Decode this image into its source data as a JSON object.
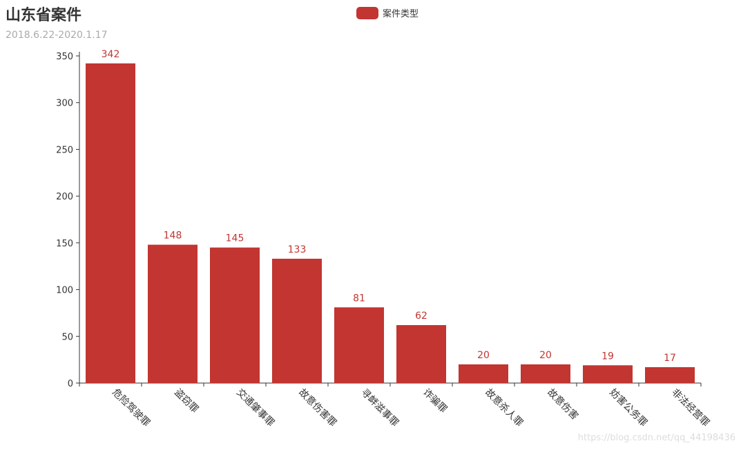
{
  "colors": {
    "bar": "#c23531",
    "axis": "#333333",
    "text": "#333333"
  },
  "chart_data": {
    "type": "bar",
    "title": "山东省案件",
    "subtitle": "2018.6.22-2020.1.17",
    "legend": {
      "position": "top-center",
      "entries": [
        "案件类型"
      ]
    },
    "categories": [
      "危险驾驶罪",
      "盗窃罪",
      "交通肇事罪",
      "故意伤害罪",
      "寻衅滋事罪",
      "诈骗罪",
      "故意杀人罪",
      "故意伤害",
      "妨害公务罪",
      "非法经营罪"
    ],
    "series": [
      {
        "name": "案件类型",
        "values": [
          342,
          148,
          145,
          133,
          81,
          62,
          20,
          20,
          19,
          17
        ]
      }
    ],
    "ylim": [
      0,
      350
    ],
    "yticks": [
      0,
      50,
      100,
      150,
      200,
      250,
      300,
      350
    ],
    "grid": false
  },
  "watermark": "https://blog.csdn.net/qq_44198436"
}
